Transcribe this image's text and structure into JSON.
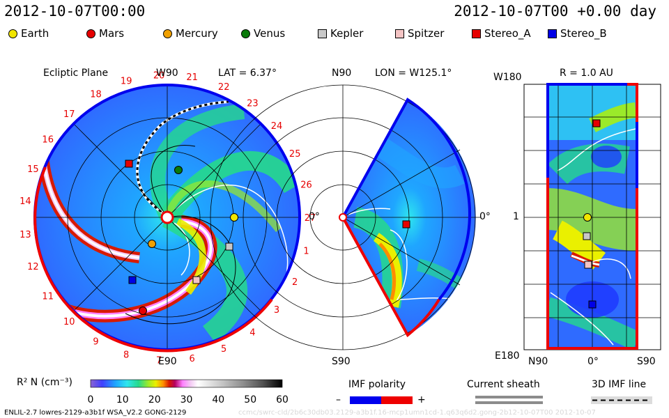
{
  "header": {
    "datetime_left": "2012-10-07T00:00",
    "datetime_right": "2012-10-07T00 +0.00 day"
  },
  "legend": [
    {
      "name": "Earth",
      "shape": "circle",
      "color": "#f2e600"
    },
    {
      "name": "Mars",
      "shape": "circle",
      "color": "#e60000"
    },
    {
      "name": "Mercury",
      "shape": "circle",
      "color": "#f0a000"
    },
    {
      "name": "Venus",
      "shape": "circle",
      "color": "#0a7a0a"
    },
    {
      "name": "Kepler",
      "shape": "square",
      "color": "#c8c8c8"
    },
    {
      "name": "Spitzer",
      "shape": "square",
      "color": "#f4c4c4"
    },
    {
      "name": "Stereo_A",
      "shape": "square",
      "color": "#e60000"
    },
    {
      "name": "Stereo_B",
      "shape": "square",
      "color": "#0000e6"
    }
  ],
  "ecliptic": {
    "title": "Ecliptic Plane",
    "top_label": "W90",
    "bottom_label": "E90",
    "right_label": "0°",
    "lat_label": "LAT = 6.37°",
    "carrington_labels": [
      "1",
      "2",
      "3",
      "4",
      "5",
      "6",
      "7",
      "8",
      "9",
      "10",
      "11",
      "12",
      "13",
      "14",
      "15",
      "16",
      "17",
      "18",
      "19",
      "20",
      "21",
      "22",
      "23",
      "24",
      "25",
      "26",
      "27"
    ]
  },
  "meridional": {
    "title": "LON = W125.1°",
    "top_label": "N90",
    "bottom_label": "S90",
    "right_label": "0°"
  },
  "radial": {
    "title": "R = 1.0 AU",
    "top_label": "W180",
    "bottom_label": "E180",
    "mid_label": "1",
    "x_labels": [
      "N90",
      "0°",
      "S90"
    ]
  },
  "colorbar": {
    "label": "R² N (cm⁻³)",
    "ticks": [
      "0",
      "10",
      "20",
      "30",
      "40",
      "50",
      "60"
    ]
  },
  "imf_polarity": {
    "label": "IMF polarity",
    "minus": "–",
    "plus": "+"
  },
  "current_sheath": {
    "label": "Current sheath"
  },
  "imf_line": {
    "label": "3D IMF line"
  },
  "footer": {
    "model": "ENLIL-2.7 lowres-2129-a3b1f WSA_V2.2 GONG-2129",
    "watermark": "ccmc/swrc-cld/2b6c30db03.2129-a3b1f.16-mcp1umn1cd-1.q63q6d2.gong-2b12-10-07T00 2012-10-07"
  },
  "colors": {
    "density_scale": [
      "#8a63d2",
      "#4040ff",
      "#1fa6ff",
      "#2ee6ee",
      "#26d98c",
      "#9bea2a",
      "#eaf000",
      "#ff8c00",
      "#d81a00",
      "#b40060",
      "#ff80ff",
      "#f3c8f3",
      "#ffffff",
      "#c8c8c8",
      "#8c8c8c",
      "#505050",
      "#000000"
    ],
    "background_blue": "#2f6bff",
    "polarity_neg": "#0000ee",
    "polarity_pos": "#ee0000"
  }
}
